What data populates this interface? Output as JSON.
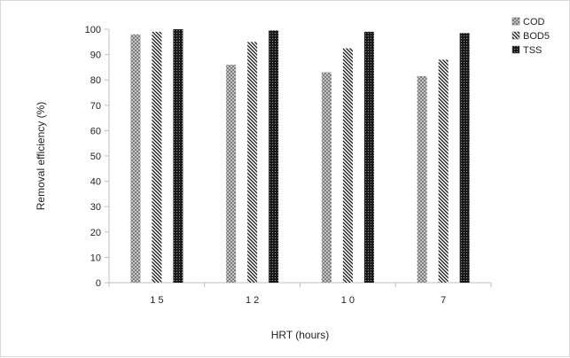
{
  "chart_data": {
    "type": "bar",
    "title": "",
    "xlabel": "HRT (hours)",
    "ylabel": "Removal efficiency (%)",
    "categories": [
      "1 5",
      "1 2",
      "1 0",
      "7"
    ],
    "ylim": [
      0,
      100
    ],
    "ytick_step": 10,
    "grid": false,
    "legend_position": "top-right",
    "series": [
      {
        "name": "COD",
        "values": [
          98,
          86,
          83,
          81.5
        ],
        "pattern": "crosshatch"
      },
      {
        "name": "BOD5",
        "values": [
          99,
          95,
          92.5,
          88
        ],
        "pattern": "diagonal-stripes"
      },
      {
        "name": "TSS",
        "values": [
          100,
          99.5,
          99,
          98.5
        ],
        "pattern": "dense-checker"
      }
    ]
  }
}
